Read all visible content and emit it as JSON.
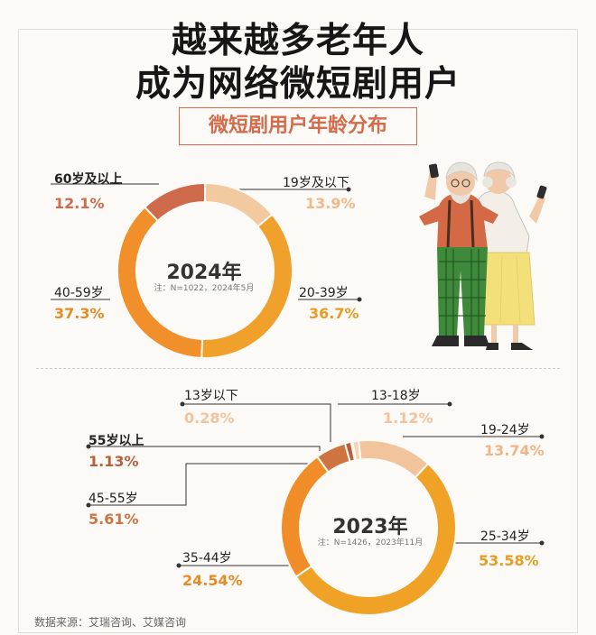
{
  "header": {
    "title_line1": "越来越多老年人",
    "title_line2": "成为网络微短剧用户",
    "subtitle": "微短剧用户年龄分布"
  },
  "colors": {
    "accent": "#d46b4a",
    "orange": "#f0a024",
    "dark_orange": "#d4763c",
    "light_peach": "#f3c9a0",
    "brown": "#b8683e"
  },
  "chart_data": [
    {
      "type": "pie",
      "center_label": "2024年",
      "note": "注：N=1022，2024年5月",
      "slices": [
        {
          "label": "60岁及以上",
          "value": 12.1,
          "value_label": "12.1%",
          "color": "#cf6a4c"
        },
        {
          "label": "19岁及以下",
          "value": 13.9,
          "value_label": "13.9%",
          "color": "#f3c9a0"
        },
        {
          "label": "20-39岁",
          "value": 36.7,
          "value_label": "36.7%",
          "color": "#efa12c"
        },
        {
          "label": "40-59岁",
          "value": 37.3,
          "value_label": "37.3%",
          "color": "#f18f2a"
        }
      ]
    },
    {
      "type": "pie",
      "center_label": "2023年",
      "note": "注：N=1426，2023年11月",
      "slices": [
        {
          "label": "13岁以下",
          "value": 0.28,
          "value_label": "0.28%",
          "color": "#f7dcc2"
        },
        {
          "label": "13-18岁",
          "value": 1.12,
          "value_label": "1.12%",
          "color": "#f5d4b4"
        },
        {
          "label": "19-24岁",
          "value": 13.74,
          "value_label": "13.74%",
          "color": "#f2c49c"
        },
        {
          "label": "25-34岁",
          "value": 53.58,
          "value_label": "53.58%",
          "color": "#efa226"
        },
        {
          "label": "35-44岁",
          "value": 24.54,
          "value_label": "24.54%",
          "color": "#f18d28"
        },
        {
          "label": "45-55岁",
          "value": 5.61,
          "value_label": "5.61%",
          "color": "#cf7440"
        },
        {
          "label": "55岁以上",
          "value": 1.13,
          "value_label": "1.13%",
          "color": "#b5603a"
        }
      ]
    }
  ],
  "footer": {
    "source": "数据来源：艾瑞咨询、艾媒咨询"
  }
}
